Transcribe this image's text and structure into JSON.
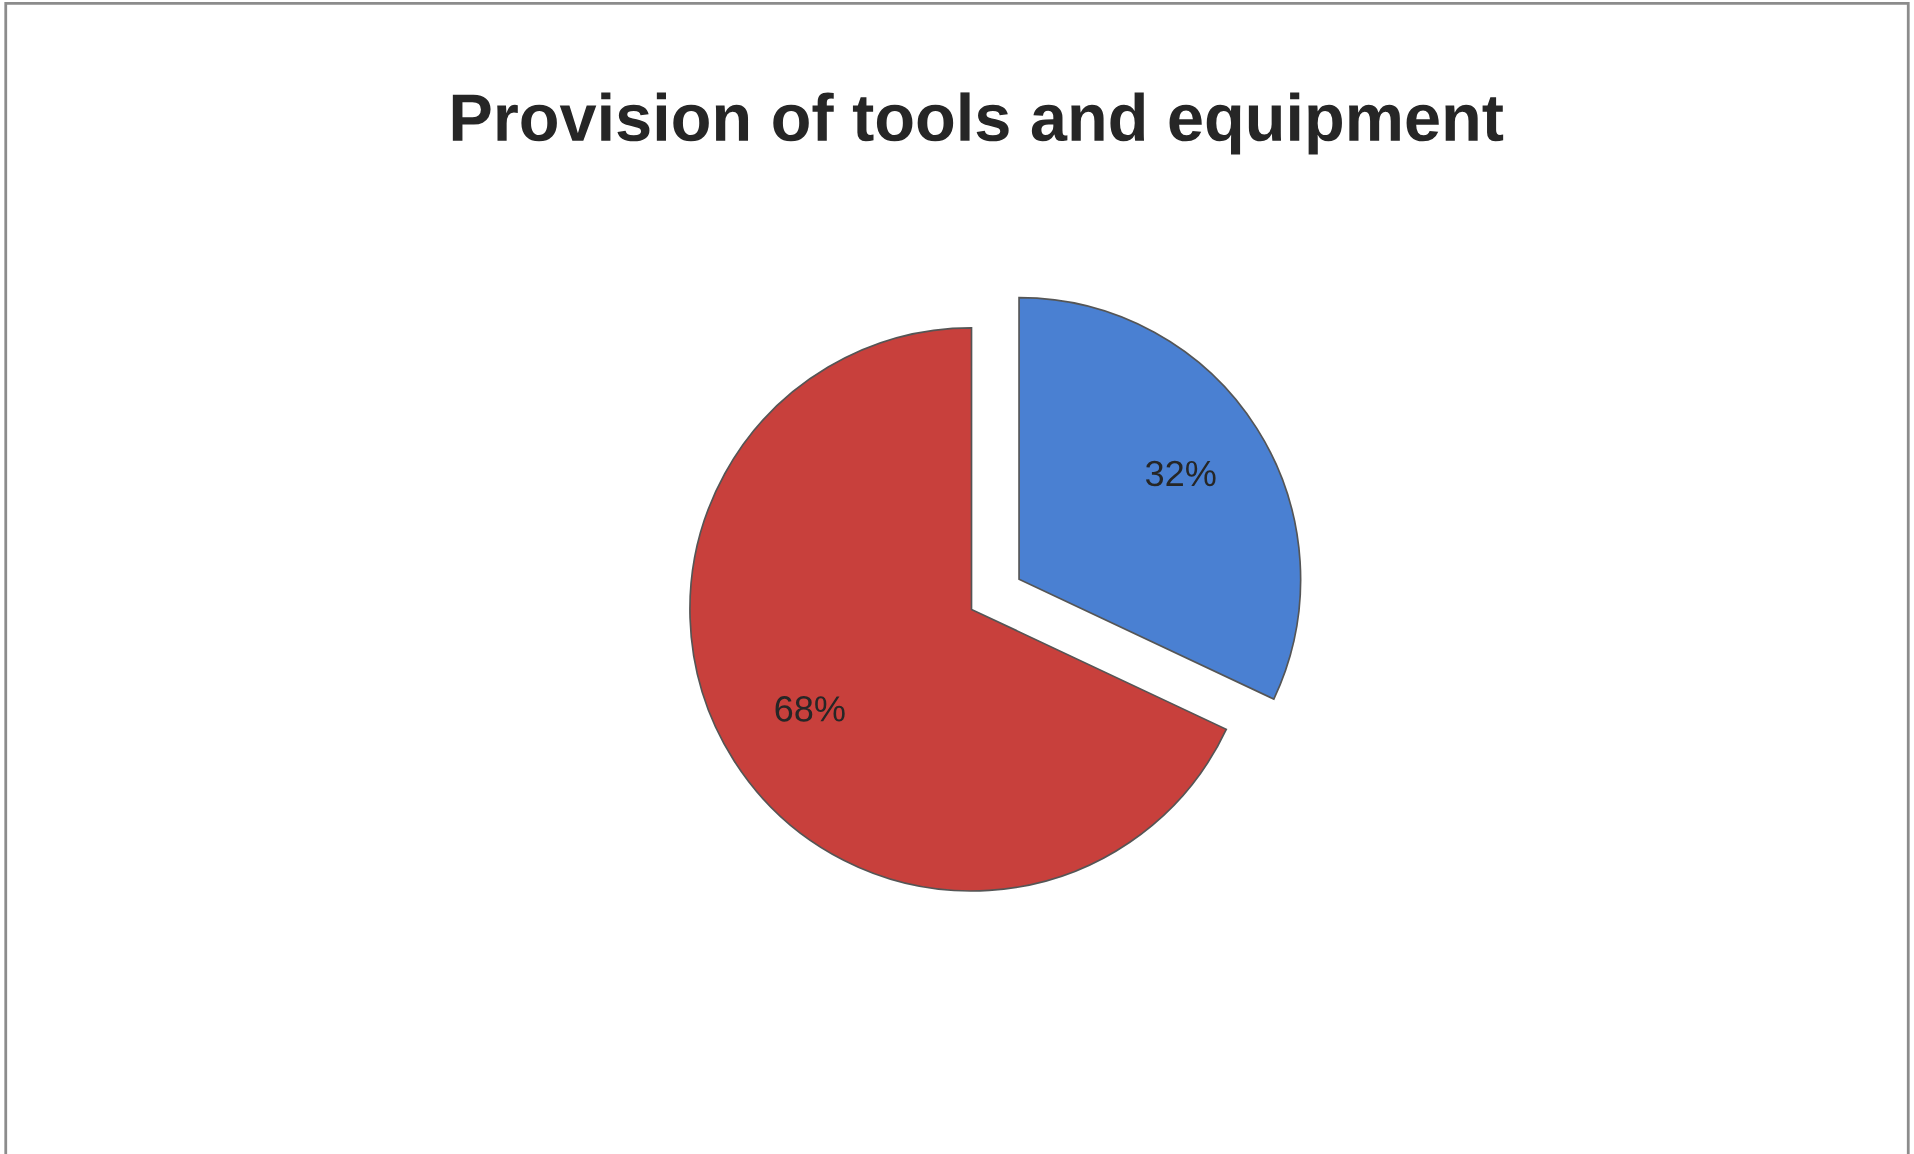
{
  "chart_data": {
    "type": "pie",
    "title": "Provision of tools and equipment",
    "categories": [
      null,
      null
    ],
    "values": [
      32,
      68
    ],
    "colors": [
      "#4a80d2",
      "#c8403c"
    ],
    "value_labels": [
      "32%",
      "68%"
    ]
  }
}
